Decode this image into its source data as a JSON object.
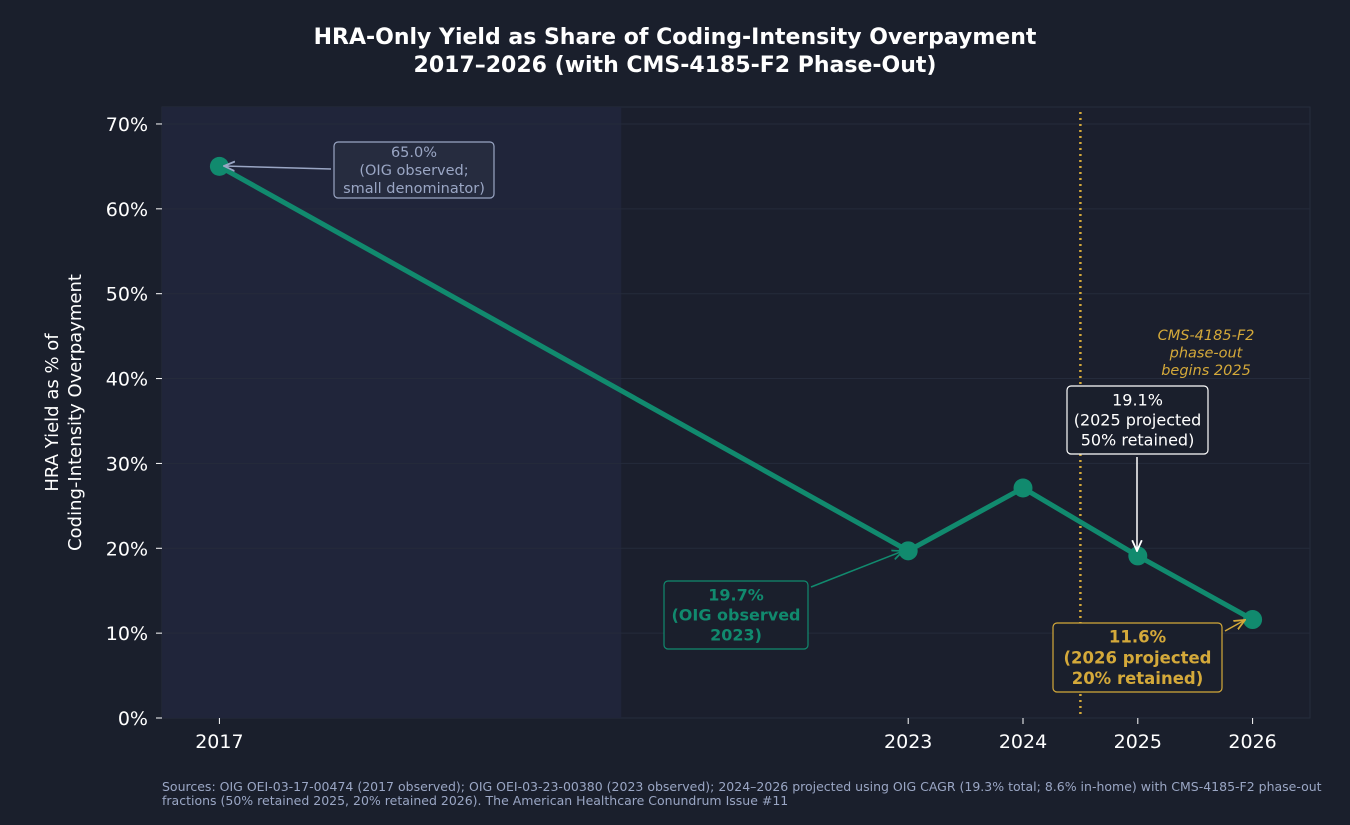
{
  "colors": {
    "background": "#1a1f2c",
    "plot_bg": "#1b1f2d",
    "shade": "#20253a",
    "line": "#118a6e",
    "accent_gold": "#d4a93a",
    "muted": "#9aa6c4",
    "white": "#ffffff"
  },
  "chart_data": {
    "type": "line",
    "title": "HRA-Only Yield as Share of Coding-Intensity Overpayment",
    "subtitle": "2017–2026 (with CMS-4185-F2 Phase-Out)",
    "ylabel": "HRA Yield as % of\nCoding-Intensity Overpayment",
    "xlabel": "",
    "x": [
      2017,
      2023,
      2024,
      2025,
      2026
    ],
    "values": [
      65.0,
      19.7,
      27.1,
      19.1,
      11.6
    ],
    "xlim": [
      2016.5,
      2026.5
    ],
    "ylim": [
      0,
      72
    ],
    "yticks": [
      0,
      10,
      20,
      30,
      40,
      50,
      60,
      70
    ],
    "ytick_suffix": "%",
    "grid": true,
    "shaded_region": [
      2016.5,
      2020.5
    ],
    "phase_out_line_x": 2024.5,
    "phase_out_label": "CMS-4185-F2\nphase-out\nbegins 2025",
    "annotations": [
      {
        "id": "ann-2017",
        "x": 2017,
        "y": 65.0,
        "text": "65.0%\n(OIG observed;\nsmall denominator)",
        "style": "muted"
      },
      {
        "id": "ann-2023",
        "x": 2023,
        "y": 19.7,
        "text": "19.7%\n(OIG observed\n2023)",
        "style": "teal"
      },
      {
        "id": "ann-2025",
        "x": 2025,
        "y": 19.1,
        "text": "19.1%\n(2025 projected\n50% retained)",
        "style": "white"
      },
      {
        "id": "ann-2026",
        "x": 2026,
        "y": 11.6,
        "text": "11.6%\n(2026 projected\n20% retained)",
        "style": "gold"
      }
    ]
  },
  "footer": {
    "line1": "Sources: OIG OEI-03-17-00474 (2017 observed); OIG OEI-03-23-00380 (2023 observed); 2024–2026 projected using OIG CAGR (19.3% total; 8.6% in-home) with CMS-4185-F2 phase-out",
    "line2": "fractions (50% retained 2025, 20% retained 2026). The American Healthcare Conundrum  Issue #11"
  }
}
